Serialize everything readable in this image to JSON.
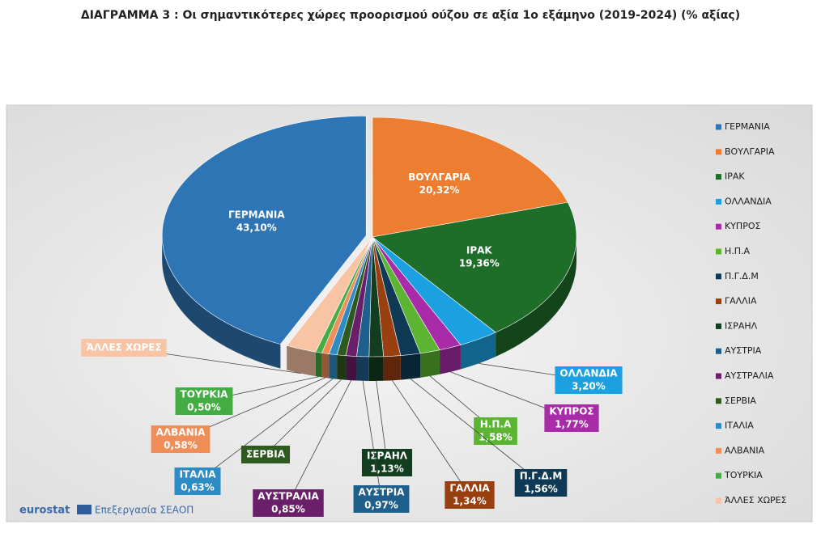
{
  "chart_data": {
    "type": "pie3d",
    "title": "ΔΙΑΓΡΑΜΜΑ 3 : Οι σημαντικότερες χώρες προορισμού ούζου σε αξία 1ο εξάμηνο (2019-2024) (% αξίας)",
    "categories": [
      "ΓΕΡΜΑΝΙΑ",
      "ΒΟΥΛΓΑΡΙΑ",
      "ΙΡΑΚ",
      "ΟΛΛΑΝΔΙΑ",
      "ΚΥΠΡΟΣ",
      "Η.Π.Α",
      "Π.Γ.Δ.Μ",
      "ΓΑΛΛΙΑ",
      "ΙΣΡΑΗΛ",
      "ΑΥΣΤΡΙΑ",
      "ΑΥΣΤΡΑΛΙΑ",
      "ΣΕΡΒΙΑ",
      "ΙΤΑΛΙΑ",
      "ΑΛΒΑΝΙΑ",
      "ΤΟΥΡΚΙΑ",
      "ΆΛΛΕΣ ΧΩΡΕΣ"
    ],
    "values": [
      43.1,
      20.32,
      19.36,
      3.2,
      1.77,
      1.58,
      1.56,
      1.34,
      1.13,
      0.97,
      0.85,
      0.7,
      0.63,
      0.58,
      0.5,
      2.4
    ],
    "value_labels": [
      "43,10%",
      "20,32%",
      "19,36%",
      "3,20%",
      "1,77%",
      "1,58%",
      "1,56%",
      "1,34%",
      "1,13%",
      "0,97%",
      "0,85%",
      null,
      "0,63%",
      "0,58%",
      "0,50%",
      null
    ],
    "colors": [
      "#2e75b6",
      "#ed7d31",
      "#1e6e2a",
      "#1ba1e2",
      "#a82ca8",
      "#5cb532",
      "#0f3a55",
      "#9a3f10",
      "#133d1f",
      "#1f5f8b",
      "#6a1f6a",
      "#2f5a1f",
      "#2d8cc4",
      "#ef8e58",
      "#43ad43",
      "#f8c4a4"
    ],
    "legend": "right",
    "source_logo": "eurostat",
    "source": "Επεξεργασία ΣΕΑΟΠ"
  }
}
